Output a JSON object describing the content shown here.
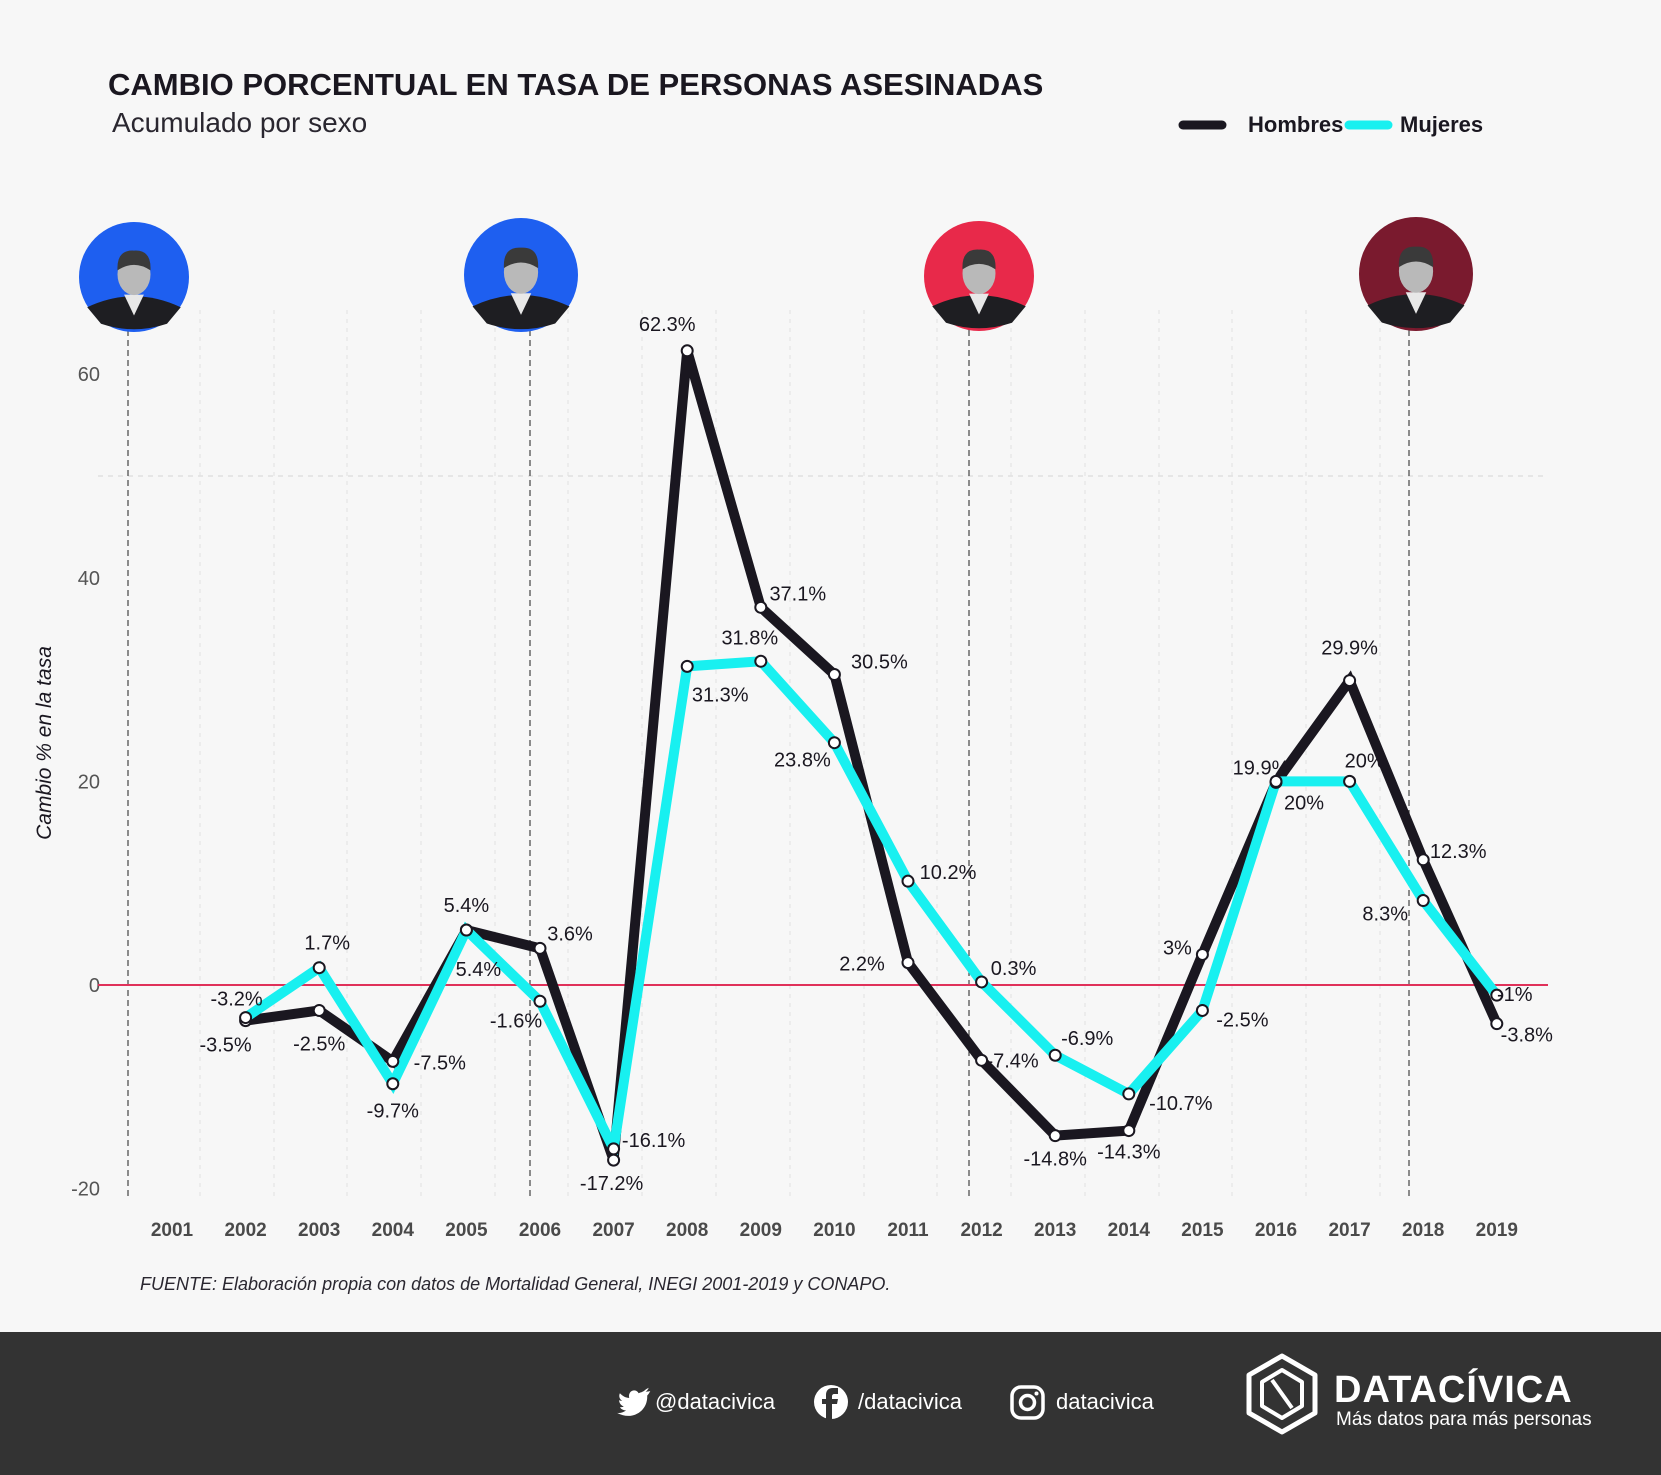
{
  "chart_data": {
    "type": "line",
    "title": "CAMBIO PORCENTUAL EN TASA DE PERSONAS ASESINADAS",
    "subtitle": "Acumulado por sexo",
    "ylabel": "Cambio % en la tasa",
    "ylim": [
      -20,
      65
    ],
    "yticks": [
      "60",
      "40",
      "20",
      "0",
      "-20"
    ],
    "x": [
      "2001",
      "2002",
      "2003",
      "2004",
      "2005",
      "2006",
      "2007",
      "2008",
      "2009",
      "2010",
      "2011",
      "2012",
      "2013",
      "2014",
      "2015",
      "2016",
      "2017",
      "2018",
      "2019"
    ],
    "legend_position": "top-right",
    "series": [
      {
        "name": "Hombres",
        "color": "#1a1720",
        "x": [
          "2002",
          "2003",
          "2004",
          "2005",
          "2006",
          "2007",
          "2008",
          "2009",
          "2010",
          "2011",
          "2012",
          "2013",
          "2014",
          "2015",
          "2016",
          "2017",
          "2018",
          "2019"
        ],
        "values": [
          -3.5,
          -2.5,
          -7.5,
          5.4,
          3.6,
          -17.2,
          62.3,
          37.1,
          30.5,
          2.2,
          -7.4,
          -14.8,
          -14.3,
          3,
          19.9,
          29.9,
          12.3,
          -3.8
        ],
        "labels": [
          "-3.5%",
          "-2.5%",
          "-7.5%",
          "5.4%",
          "3.6%",
          "-17.2%",
          "62.3%",
          "37.1%",
          "30.5%",
          "2.2%",
          "-7.4%",
          "-14.8%",
          "-14.3%",
          "3%",
          "19.9%",
          "29.9%",
          "12.3%",
          "-3.8%"
        ]
      },
      {
        "name": "Mujeres",
        "color": "#18f0f0",
        "x": [
          "2002",
          "2003",
          "2004",
          "2005",
          "2006",
          "2007",
          "2008",
          "2009",
          "2010",
          "2011",
          "2012",
          "2013",
          "2014",
          "2015",
          "2016",
          "2017",
          "2018",
          "2019"
        ],
        "values": [
          -3.2,
          1.7,
          -9.7,
          5.4,
          -1.6,
          -16.1,
          31.3,
          31.8,
          23.8,
          10.2,
          0.3,
          -6.9,
          -10.7,
          -2.5,
          20,
          20,
          8.3,
          -1
        ],
        "labels": [
          "-3.2%",
          "1.7%",
          "-9.7%",
          "5.4%",
          "-1.6%",
          "-16.1%",
          "31.3%",
          "31.8%",
          "23.8%",
          "10.2%",
          "0.3%",
          "-6.9%",
          "-10.7%",
          "-2.5%",
          "20%",
          "20%",
          "8.3%",
          "-1%"
        ]
      }
    ],
    "reference_line": {
      "value": 0,
      "color": "#e0315a"
    },
    "term_markers": {
      "years": [
        "2001",
        "2006",
        "2012",
        "2018"
      ],
      "colors": [
        "#1e5ff0",
        "#1e5ff0",
        "#e8294a",
        "#7a1a2e"
      ],
      "portraits": [
        "portrait-2001",
        "portrait-2006",
        "portrait-2012",
        "portrait-2018"
      ]
    }
  },
  "source": "FUENTE: Elaboración propia con datos de Mortalidad General, INEGI 2001-2019 y CONAPO.",
  "footer": {
    "twitter": "@datacivica",
    "facebook": "/datacivica",
    "instagram": "datacivica",
    "brand": "DATACÍVICA",
    "tagline": "Más datos para más personas",
    "background": "#333333"
  }
}
